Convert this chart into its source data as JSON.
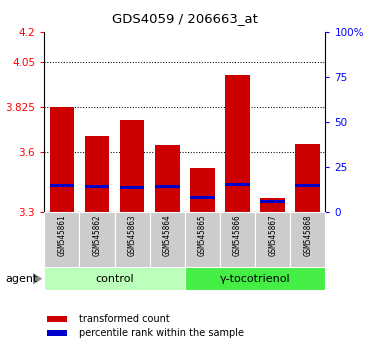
{
  "title": "GDS4059 / 206663_at",
  "samples": [
    "GSM545861",
    "GSM545862",
    "GSM545863",
    "GSM545864",
    "GSM545865",
    "GSM545866",
    "GSM545867",
    "GSM545868"
  ],
  "red_values": [
    3.825,
    3.68,
    3.76,
    3.635,
    3.52,
    3.985,
    3.37,
    3.64
  ],
  "blue_values": [
    3.435,
    3.43,
    3.425,
    3.43,
    3.375,
    3.44,
    3.355,
    3.435
  ],
  "bar_bottom": 3.3,
  "ylim": [
    3.3,
    4.2
  ],
  "yticks_left": [
    3.3,
    3.6,
    3.825,
    4.05,
    4.2
  ],
  "ytick_right_labels": [
    "0",
    "25",
    "50",
    "75",
    "100%"
  ],
  "right_ylim": [
    0,
    100
  ],
  "right_yticks": [
    0,
    25,
    50,
    75,
    100
  ],
  "groups": [
    {
      "label": "control",
      "indices": [
        0,
        1,
        2,
        3
      ],
      "color": "#bbffbb"
    },
    {
      "label": "γ-tocotrienol",
      "indices": [
        4,
        5,
        6,
        7
      ],
      "color": "#44ee44"
    }
  ],
  "agent_label": "agent",
  "legend_red": "transformed count",
  "legend_blue": "percentile rank within the sample",
  "red_color": "#cc0000",
  "blue_color": "#0000cc",
  "bar_width": 0.7,
  "bg_color": "#ffffff",
  "blue_bar_height": 0.012,
  "grid_yticks": [
    3.6,
    3.825,
    4.05
  ]
}
